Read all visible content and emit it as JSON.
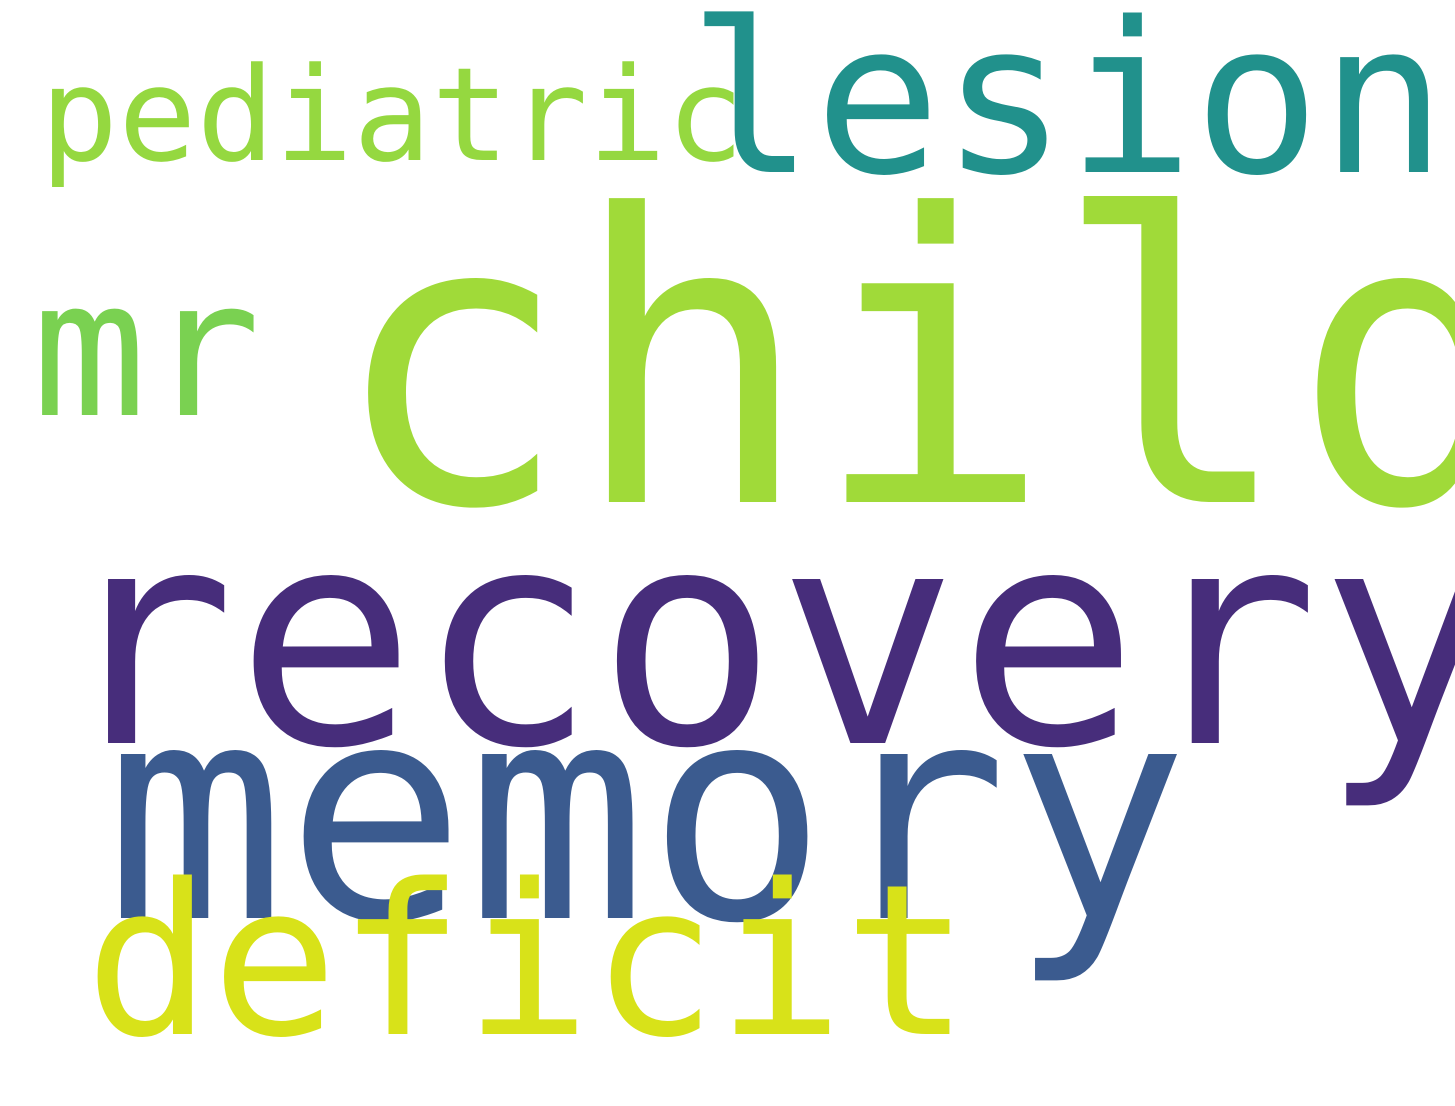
{
  "words": [
    {
      "key": "child",
      "text": "child",
      "color": "#a0da39"
    },
    {
      "key": "recovery",
      "text": "recovery",
      "color": "#472d7b"
    },
    {
      "key": "memory",
      "text": "memory",
      "color": "#3b5b8f"
    },
    {
      "key": "lesion",
      "text": "lesion",
      "color": "#21918c"
    },
    {
      "key": "deficit",
      "text": "deficit",
      "color": "#d8e219"
    },
    {
      "key": "pediatric",
      "text": "pediatric",
      "color": "#95d840"
    },
    {
      "key": "mr",
      "text": "mr",
      "color": "#7ad151"
    }
  ]
}
